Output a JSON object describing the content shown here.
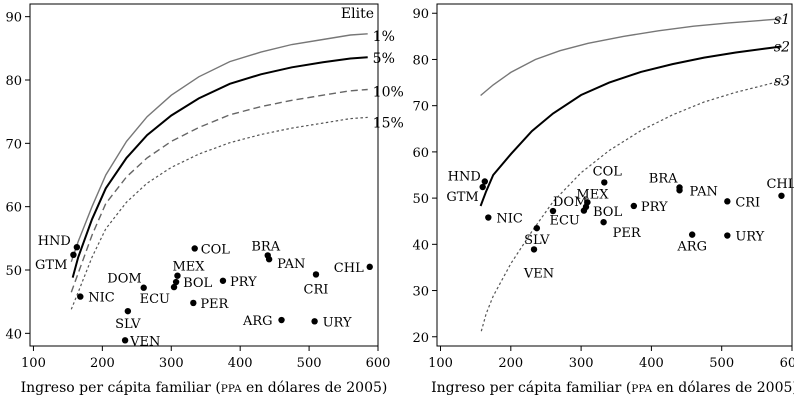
{
  "chart_data": [
    {
      "type": "scatter",
      "xlabel_pre": "Ingreso per cápita familiar (",
      "xlabel_sc": "PPA",
      "xlabel_post": " en dólares de 2005)",
      "xlim": [
        95,
        600
      ],
      "ylim": [
        38,
        92
      ],
      "xticks": [
        100,
        200,
        300,
        400,
        500,
        600
      ],
      "yticks": [
        40,
        50,
        60,
        70,
        80,
        90
      ],
      "legend_title": "Elite",
      "curves": [
        {
          "name": "1%",
          "style": "thin",
          "x": [
            155,
            165,
            185,
            205,
            235,
            265,
            300,
            340,
            385,
            430,
            475,
            520,
            560,
            585
          ],
          "y": [
            51.3,
            54.5,
            60,
            65,
            70.3,
            74.2,
            77.6,
            80.5,
            82.9,
            84.4,
            85.6,
            86.4,
            87.1,
            87.3
          ]
        },
        {
          "name": "5%",
          "style": "thick",
          "x": [
            157,
            165,
            185,
            205,
            235,
            265,
            300,
            340,
            385,
            430,
            475,
            520,
            560,
            585
          ],
          "y": [
            48.8,
            52,
            58,
            62.9,
            67.7,
            71.3,
            74.4,
            77.1,
            79.4,
            80.9,
            82,
            82.8,
            83.4,
            83.6
          ]
        },
        {
          "name": "10%",
          "style": "dashed",
          "x": [
            155,
            165,
            185,
            205,
            235,
            265,
            300,
            340,
            385,
            430,
            475,
            520,
            560,
            585
          ],
          "y": [
            46.5,
            49.5,
            55.5,
            60.5,
            64.7,
            67.7,
            70.3,
            72.5,
            74.5,
            75.8,
            76.8,
            77.6,
            78.3,
            78.5
          ]
        },
        {
          "name": "15%",
          "style": "dotted",
          "x": [
            155,
            165,
            185,
            205,
            235,
            265,
            300,
            340,
            385,
            430,
            475,
            520,
            560,
            585
          ],
          "y": [
            43.8,
            46.5,
            52,
            56.5,
            60.7,
            63.7,
            66.2,
            68.3,
            70.1,
            71.4,
            72.4,
            73.2,
            73.9,
            74.1
          ]
        }
      ],
      "points": [
        {
          "label": "HND",
          "x": 163,
          "y": 53.6
        },
        {
          "label": "GTM",
          "x": 158,
          "y": 52.4
        },
        {
          "label": "NIC",
          "x": 168,
          "y": 45.8
        },
        {
          "label": "DOM",
          "x": 260,
          "y": 47.2
        },
        {
          "label": "SLV",
          "x": 237,
          "y": 43.5
        },
        {
          "label": "VEN",
          "x": 233,
          "y": 38.9
        },
        {
          "label": "COL",
          "x": 334,
          "y": 53.4
        },
        {
          "label": "MEX",
          "x": 309,
          "y": 49.1
        },
        {
          "label": "BOL",
          "x": 307,
          "y": 48.1
        },
        {
          "label": "ECU",
          "x": 304,
          "y": 47.3
        },
        {
          "label": "PRY",
          "x": 375,
          "y": 48.3
        },
        {
          "label": "PER",
          "x": 332,
          "y": 44.8
        },
        {
          "label": "BRA",
          "x": 440,
          "y": 52.3
        },
        {
          "label": "PAN",
          "x": 442,
          "y": 51.7
        },
        {
          "label": "CRI",
          "x": 510,
          "y": 49.3
        },
        {
          "label": "CHL",
          "x": 588,
          "y": 50.5
        },
        {
          "label": "ARG",
          "x": 460,
          "y": 42.1
        },
        {
          "label": "URY",
          "x": 508,
          "y": 41.9
        }
      ]
    },
    {
      "type": "scatter",
      "xlabel_pre": "Ingreso per cápita familiar (",
      "xlabel_sc": "PPA",
      "xlabel_post": " en dólares de 2005)",
      "xlim": [
        95,
        600
      ],
      "ylim": [
        18,
        92
      ],
      "xticks": [
        100,
        200,
        300,
        400,
        500,
        600
      ],
      "yticks": [
        20,
        30,
        40,
        50,
        60,
        70,
        80,
        90
      ],
      "curves": [
        {
          "name": "s1",
          "style": "thin",
          "x": [
            157,
            175,
            200,
            235,
            270,
            310,
            360,
            410,
            460,
            510,
            560,
            585
          ],
          "y": [
            72.2,
            74.5,
            77.2,
            80,
            81.9,
            83.5,
            85,
            86.2,
            87.2,
            87.9,
            88.5,
            88.8
          ]
        },
        {
          "name": "s2",
          "style": "thick",
          "x": [
            157,
            165,
            175,
            200,
            230,
            260,
            300,
            340,
            385,
            430,
            475,
            520,
            560,
            585
          ],
          "y": [
            48.3,
            51.5,
            55,
            59.5,
            64.5,
            68.3,
            72.3,
            75,
            77.3,
            79,
            80.4,
            81.5,
            82.3,
            82.8
          ]
        },
        {
          "name": "s3",
          "style": "dotted",
          "x": [
            158,
            165,
            175,
            200,
            230,
            260,
            300,
            340,
            385,
            430,
            475,
            520,
            560,
            585
          ],
          "y": [
            21.2,
            25,
            28.8,
            35.8,
            42.8,
            49.2,
            55.5,
            60.3,
            64.6,
            68,
            70.8,
            72.9,
            74.4,
            75.4
          ]
        }
      ],
      "points": [
        {
          "label": "HND",
          "x": 163,
          "y": 53.6
        },
        {
          "label": "GTM",
          "x": 160,
          "y": 52.4
        },
        {
          "label": "NIC",
          "x": 168,
          "y": 45.8
        },
        {
          "label": "DOM",
          "x": 260,
          "y": 47.2
        },
        {
          "label": "SLV",
          "x": 237,
          "y": 43.5
        },
        {
          "label": "VEN",
          "x": 233,
          "y": 38.9
        },
        {
          "label": "COL",
          "x": 333,
          "y": 53.4
        },
        {
          "label": "MEX",
          "x": 309,
          "y": 49.1
        },
        {
          "label": "BOL",
          "x": 307,
          "y": 48.1
        },
        {
          "label": "ECU",
          "x": 304,
          "y": 47.3
        },
        {
          "label": "PRY",
          "x": 375,
          "y": 48.3
        },
        {
          "label": "PER",
          "x": 332,
          "y": 44.8
        },
        {
          "label": "BRA",
          "x": 440,
          "y": 52.3
        },
        {
          "label": "PAN",
          "x": 440,
          "y": 51.7
        },
        {
          "label": "CRI",
          "x": 508,
          "y": 49.3
        },
        {
          "label": "CHL",
          "x": 585,
          "y": 50.5
        },
        {
          "label": "ARG",
          "x": 458,
          "y": 42.1
        },
        {
          "label": "URY",
          "x": 508,
          "y": 41.9
        }
      ]
    }
  ]
}
